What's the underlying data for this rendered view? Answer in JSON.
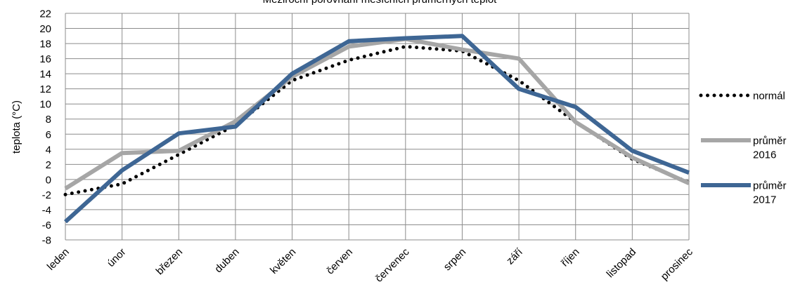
{
  "chart_data": {
    "type": "line",
    "title": "Meziroční porovnání měsíčních průměrných teplot",
    "xlabel": "",
    "ylabel": "teplota (°C)",
    "categories": [
      "leden",
      "únor",
      "březen",
      "duben",
      "květen",
      "červen",
      "červenec",
      "srpen",
      "září",
      "říjen",
      "listopad",
      "prosinec"
    ],
    "ylim": [
      -8,
      22
    ],
    "yticks": [
      -8,
      -6,
      -4,
      -2,
      0,
      2,
      4,
      6,
      8,
      10,
      12,
      14,
      16,
      18,
      20,
      22
    ],
    "grid": true,
    "legend_position": "right",
    "series": [
      {
        "name": "normál",
        "style": "dotted",
        "color": "#000000",
        "values": [
          -2.0,
          -0.6,
          3.3,
          7.2,
          13.1,
          15.8,
          17.6,
          17.0,
          13.1,
          7.6,
          2.7,
          -0.4
        ]
      },
      {
        "name": "průměr 2016",
        "style": "solid",
        "color": "#a6a6a6",
        "values": [
          -1.2,
          3.5,
          3.8,
          7.7,
          13.6,
          17.6,
          18.6,
          17.2,
          16.0,
          7.6,
          2.9,
          -0.5
        ]
      },
      {
        "name": "průměr 2017",
        "style": "solid",
        "color": "#3e6694",
        "values": [
          -5.6,
          1.2,
          6.1,
          7.0,
          14.0,
          18.3,
          18.7,
          19.0,
          12.0,
          9.6,
          3.8,
          0.9
        ]
      }
    ]
  }
}
